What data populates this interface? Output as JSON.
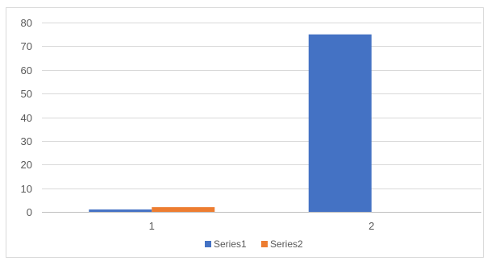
{
  "chart_data": {
    "type": "bar",
    "categories": [
      "1",
      "2"
    ],
    "series": [
      {
        "name": "Series1",
        "color": "#4472c4",
        "values": [
          1,
          75
        ]
      },
      {
        "name": "Series2",
        "color": "#ed7d31",
        "values": [
          2,
          0
        ]
      }
    ],
    "ylim": [
      0,
      80
    ],
    "yticks": [
      0,
      10,
      20,
      30,
      40,
      50,
      60,
      70,
      80
    ],
    "grid": true,
    "legend": "bottom",
    "gridline_color": "#d9d9d9",
    "axis_color": "#bfbfbf"
  }
}
